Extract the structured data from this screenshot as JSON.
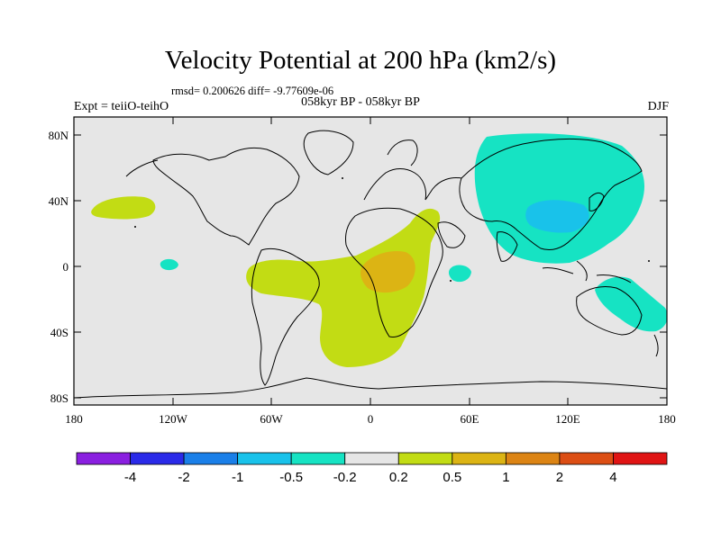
{
  "title": "Velocity Potential at 200 hPa (km2/s)",
  "stats_line": "rmsd= 0.200626 diff= -9.77609e-06",
  "experiment": "Expt = teiiO-teihO",
  "period": "058kyr BP - 058kyr BP",
  "season": "DJF",
  "lat_ticks": [
    "80N",
    "40N",
    "0",
    "40S",
    "80S"
  ],
  "lon_ticks": [
    "180",
    "120W",
    "60W",
    "0",
    "60E",
    "120E",
    "180"
  ],
  "colorbar": {
    "colors": [
      "#8a1fe0",
      "#2a2ae8",
      "#1a7fe8",
      "#19c2ea",
      "#16e3c3",
      "#e6e6e6",
      "#c2dc14",
      "#dcb414",
      "#dc8414",
      "#dc4e14",
      "#e01414"
    ],
    "labels": [
      "-4",
      "-2",
      "-1",
      "-0.5",
      "-0.2",
      "0.2",
      "0.5",
      "1",
      "2",
      "4"
    ]
  },
  "fill_colors": {
    "background": "#e6e6e6",
    "pos_02_05": "#c2dc14",
    "pos_05_1": "#dcb414",
    "neg_02_05": "#16e3c3",
    "neg_05_1": "#19c2ea"
  }
}
